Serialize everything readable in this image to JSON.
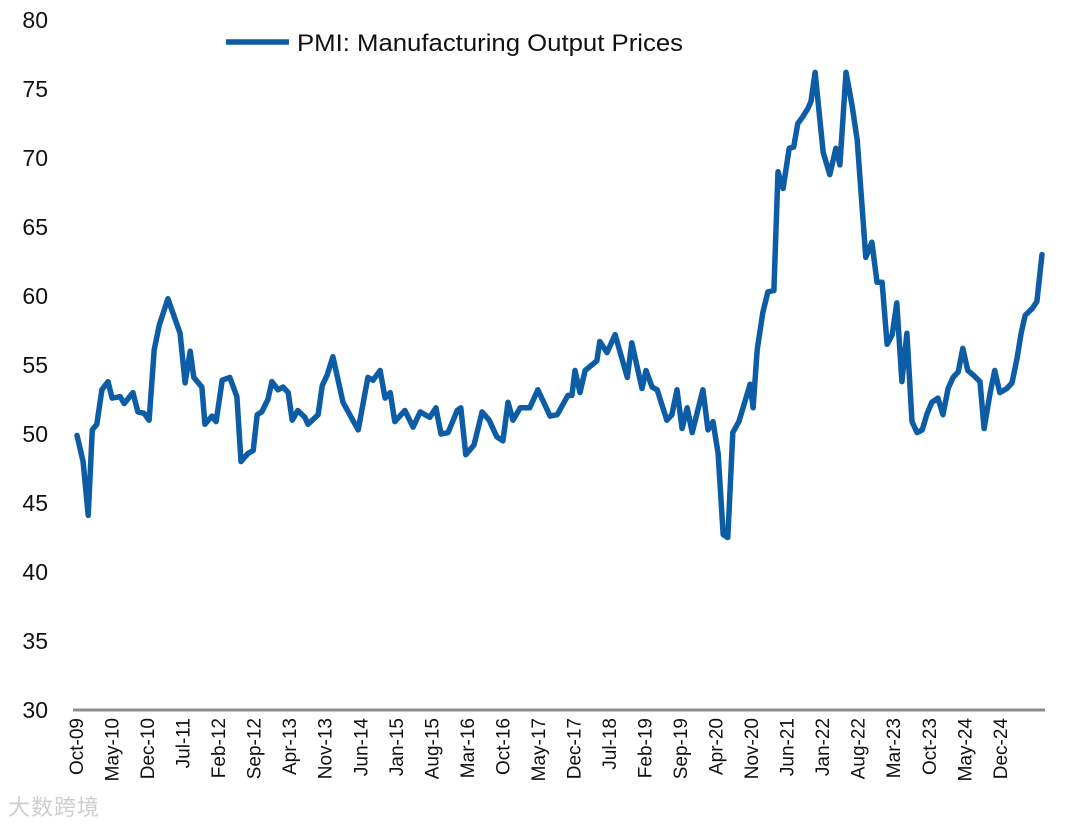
{
  "chart_data": {
    "type": "line",
    "title": "",
    "xlabel": "",
    "ylabel": "",
    "ylim": [
      30,
      80
    ],
    "yticks": [
      30,
      35,
      40,
      45,
      50,
      55,
      60,
      65,
      70,
      75,
      80
    ],
    "x_unit": "months since Oct-09",
    "xlim": [
      -0.4,
      190.7
    ],
    "xtick_labels": [
      "Oct-09",
      "May-10",
      "Dec-10",
      "Jul-11",
      "Feb-12",
      "Sep-12",
      "Apr-13",
      "Nov-13",
      "Jun-14",
      "Jan-15",
      "Aug-15",
      "Mar-16",
      "Oct-16",
      "May-17",
      "Dec-17",
      "Jul-18",
      "Feb-19",
      "Sep-19",
      "Apr-20",
      "Nov-20",
      "Jun-21",
      "Jan-22",
      "Aug-22",
      "Mar-23",
      "Oct-23",
      "May-24",
      "Dec-24"
    ],
    "xtick_step_months": 7,
    "legend": {
      "position": "top-center",
      "entries": [
        "PMI: Manufacturing Output Prices"
      ]
    },
    "grid": false,
    "series": [
      {
        "name": "PMI: Manufacturing Output Prices",
        "color": "#0d5ca6",
        "x": [
          0,
          1.2,
          2.2,
          3.0,
          3.9,
          4.9,
          6.1,
          6.9,
          8.5,
          9.3,
          11.0,
          12.0,
          13.2,
          14.2,
          15.2,
          16.2,
          17.9,
          20.3,
          21.3,
          22.3,
          23.0,
          24.6,
          25.2,
          26.6,
          27.4,
          28.6,
          30.1,
          31.5,
          32.3,
          33.7,
          34.7,
          35.5,
          36.4,
          37.6,
          38.4,
          39.6,
          40.6,
          41.6,
          42.4,
          43.5,
          44.9,
          45.5,
          47.5,
          48.3,
          49.3,
          50.4,
          52.4,
          55.4,
          57.3,
          58.3,
          59.7,
          60.7,
          61.7,
          62.6,
          64.6,
          66.2,
          67.6,
          69.5,
          70.7,
          71.7,
          73.1,
          74.9,
          75.6,
          76.6,
          78.2,
          79.8,
          81.2,
          82.7,
          83.9,
          84.9,
          85.9,
          87.3,
          89.2,
          90.8,
          93.2,
          94.6,
          96.7,
          97.5,
          98.1,
          99.1,
          100.1,
          102.4,
          103.0,
          104.4,
          106.0,
          108.4,
          109.3,
          111.3,
          112.1,
          113.3,
          114.3,
          116.2,
          117.2,
          118.2,
          119.2,
          120.2,
          121.2,
          123.3,
          124.3,
          125.3,
          126.3,
          127.3,
          128.2,
          129.2,
          130.4,
          132.6,
          133.2,
          134.0,
          135.1,
          136.1,
          137.3,
          138.1,
          139.1,
          140.3,
          141.2,
          142.0,
          143.0,
          144.0,
          144.6,
          145.4,
          147.0,
          148.3,
          149.5,
          150.3,
          151.5,
          152.7,
          153.7,
          155.4,
          156.6,
          157.6,
          158.6,
          159.6,
          160.6,
          161.5,
          162.5,
          163.5,
          164.5,
          165.5,
          166.5,
          167.5,
          168.4,
          169.6,
          170.6,
          171.6,
          172.6,
          173.6,
          174.5,
          175.5,
          176.5,
          177.9,
          178.7,
          179.9,
          180.8,
          181.8,
          183.2,
          184.2,
          185.2,
          186.0,
          186.8,
          188.2,
          189.1,
          190.1
        ],
        "y": [
          49.9,
          48.0,
          44.1,
          50.3,
          50.7,
          53.2,
          53.8,
          52.6,
          52.7,
          52.2,
          53.0,
          51.6,
          51.5,
          51.0,
          56.1,
          57.9,
          59.8,
          57.3,
          53.7,
          56.0,
          54.1,
          53.4,
          50.7,
          51.3,
          50.9,
          53.9,
          54.1,
          52.7,
          48.0,
          48.6,
          48.8,
          51.4,
          51.6,
          52.5,
          53.8,
          53.2,
          53.4,
          53.0,
          51.0,
          51.7,
          51.2,
          50.7,
          51.4,
          53.5,
          54.3,
          55.6,
          52.3,
          50.3,
          54.1,
          53.9,
          54.6,
          52.6,
          53.0,
          50.9,
          51.7,
          50.5,
          51.6,
          51.2,
          51.9,
          50.0,
          50.1,
          51.7,
          51.9,
          48.5,
          49.2,
          51.6,
          51.0,
          49.8,
          49.5,
          52.3,
          51.0,
          51.9,
          51.9,
          53.2,
          51.3,
          51.4,
          52.8,
          52.8,
          54.6,
          53.0,
          54.6,
          55.3,
          56.7,
          55.9,
          57.2,
          54.1,
          56.6,
          53.3,
          54.6,
          53.4,
          53.2,
          51.0,
          51.4,
          53.2,
          50.4,
          51.9,
          50.1,
          53.2,
          50.3,
          50.9,
          48.6,
          42.7,
          42.5,
          50.1,
          50.9,
          53.6,
          51.9,
          56.1,
          58.8,
          60.3,
          60.4,
          69.0,
          67.8,
          70.7,
          70.8,
          72.5,
          73.0,
          73.6,
          74.1,
          76.2,
          70.4,
          68.8,
          70.7,
          69.5,
          76.2,
          73.8,
          71.3,
          62.8,
          63.9,
          61.0,
          61.0,
          56.5,
          57.2,
          59.5,
          53.8,
          57.3,
          50.9,
          50.1,
          50.3,
          51.5,
          52.3,
          52.6,
          51.4,
          53.3,
          54.1,
          54.5,
          56.2,
          54.6,
          54.3,
          53.8,
          50.4,
          53.0,
          54.6,
          53.0,
          53.3,
          53.7,
          55.5,
          57.3,
          58.6,
          59.1,
          59.6,
          63.0
        ]
      }
    ]
  },
  "watermark": "大数跨境"
}
